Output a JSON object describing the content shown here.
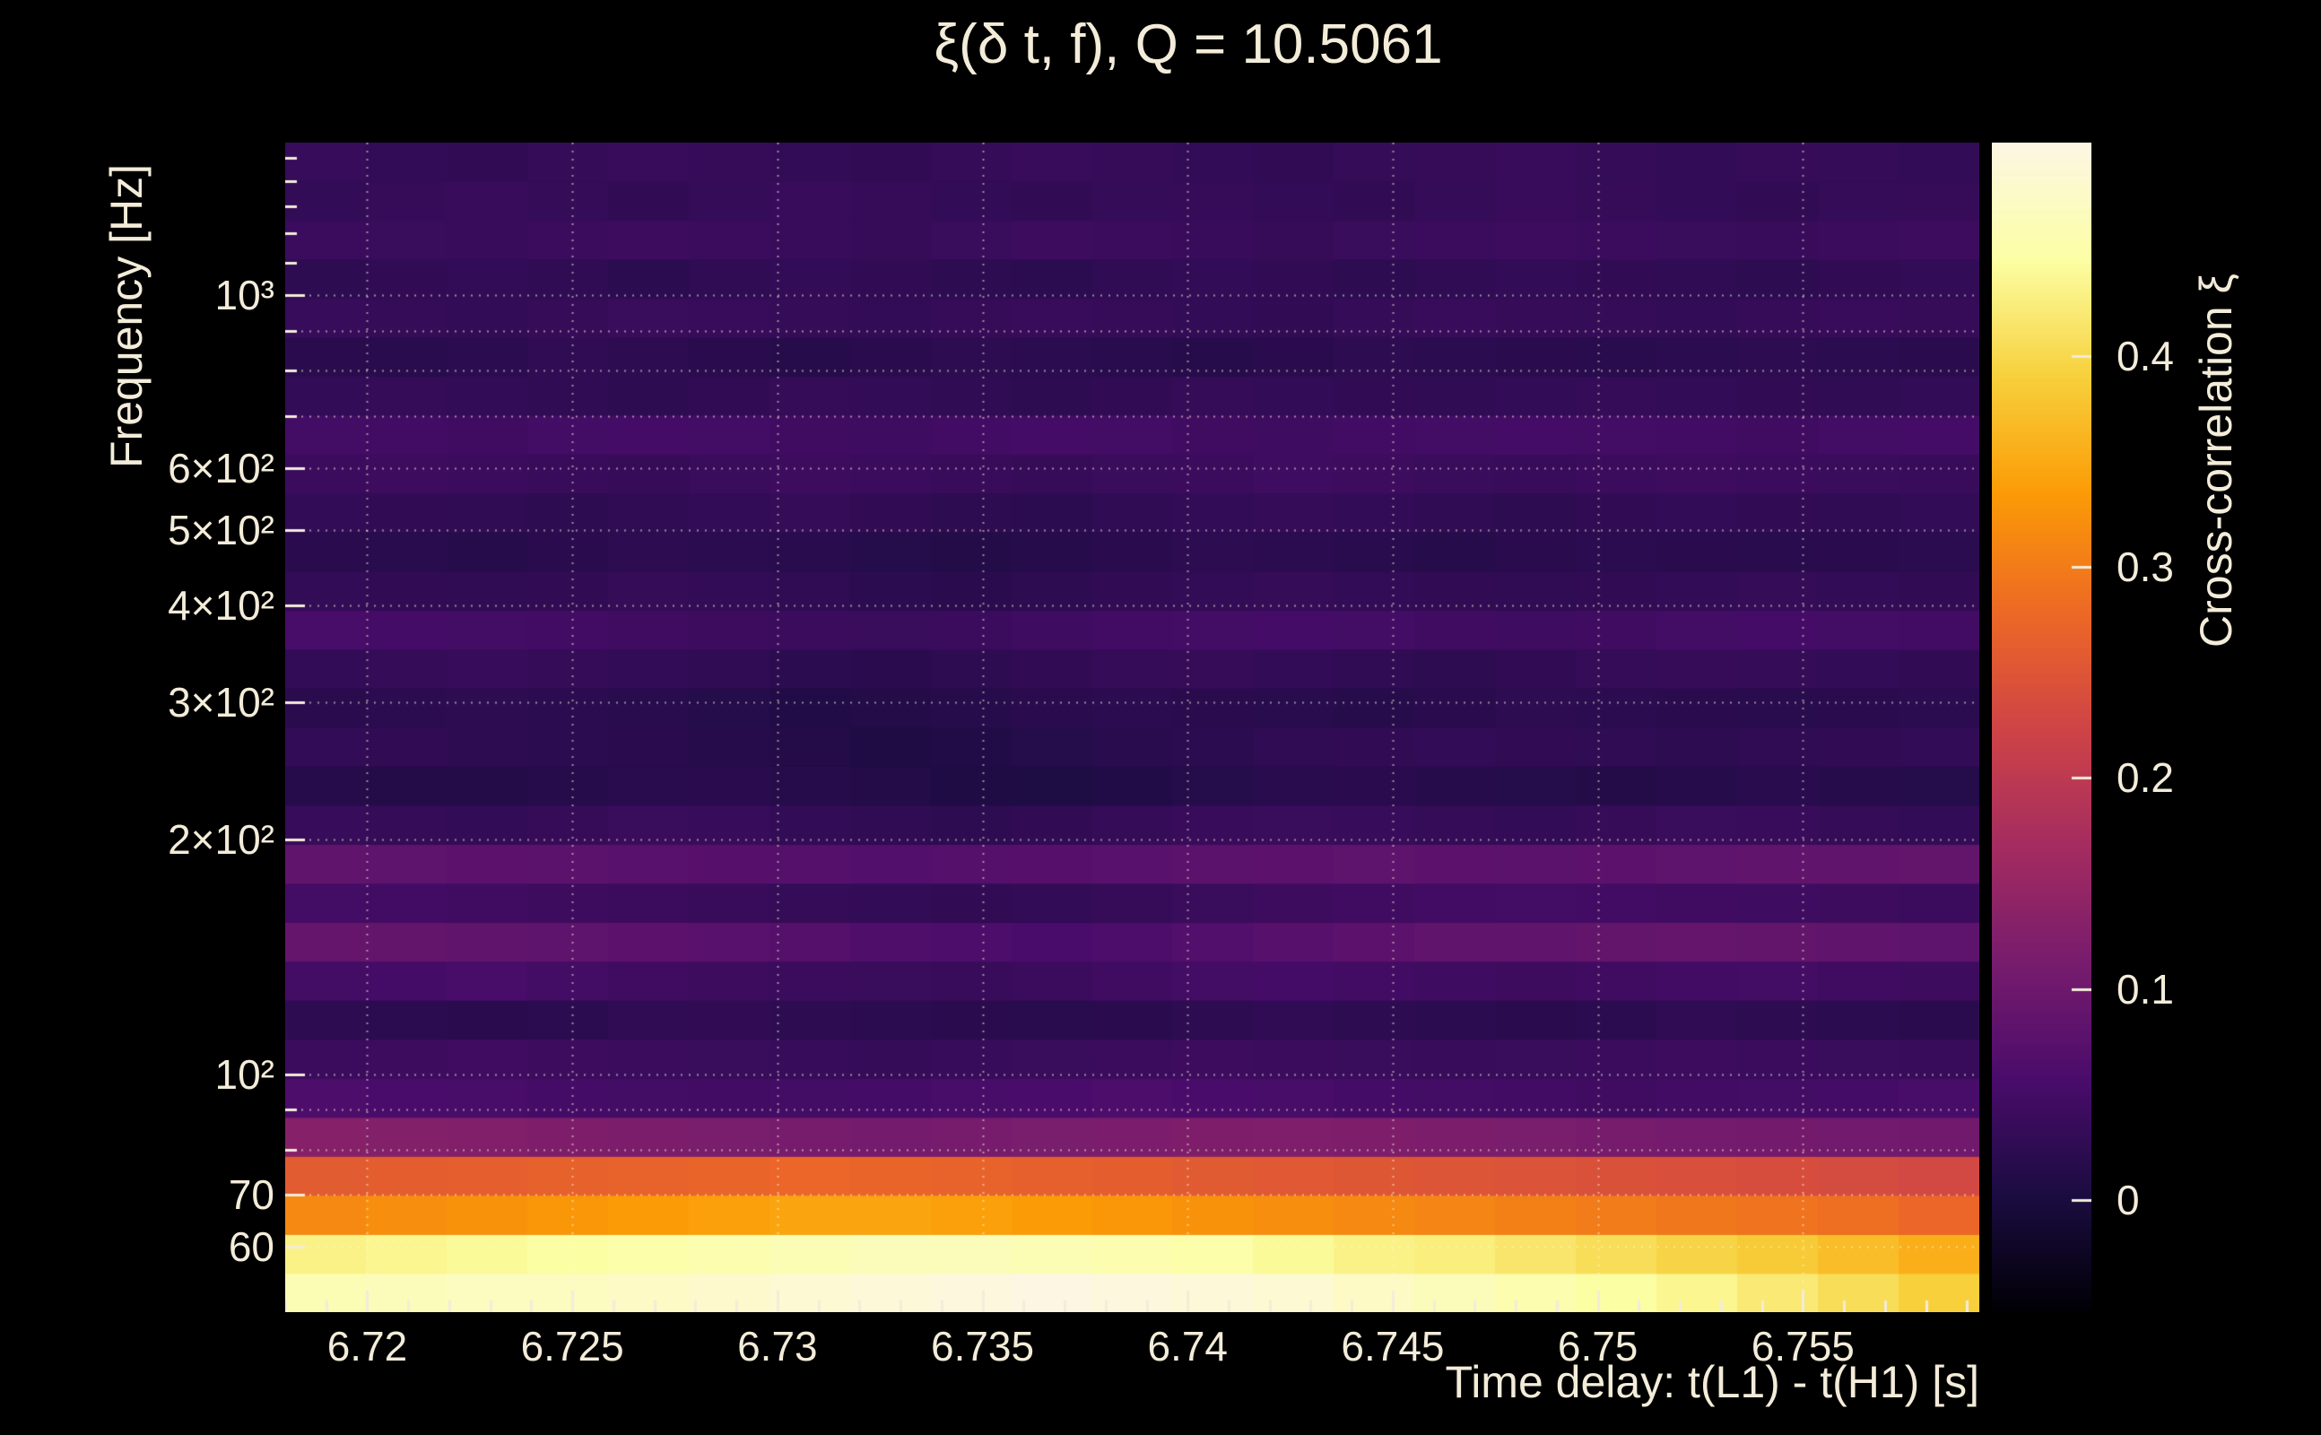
{
  "text_color": "#f3ecd9",
  "background_color": "#000000",
  "chart_data": {
    "type": "heatmap",
    "title": "ξ(δ t, f), Q = 10.5061",
    "xlabel": "Time delay: t(L1) - t(H1) [s]",
    "ylabel": "Frequency [Hz]",
    "colorbar_label": "Cross-correlation ξ",
    "x_range": [
      6.718,
      6.7593
    ],
    "y_range": [
      49.5,
      1570
    ],
    "y_scale": "log",
    "value_range": [
      -0.053,
      0.501
    ],
    "grid_on": true,
    "x_ticks": [
      {
        "v": 6.72,
        "label": "6.72"
      },
      {
        "v": 6.725,
        "label": "6.725"
      },
      {
        "v": 6.73,
        "label": "6.73"
      },
      {
        "v": 6.735,
        "label": "6.735"
      },
      {
        "v": 6.74,
        "label": "6.74"
      },
      {
        "v": 6.745,
        "label": "6.745"
      },
      {
        "v": 6.75,
        "label": "6.75"
      },
      {
        "v": 6.755,
        "label": "6.755"
      }
    ],
    "x_minor_step": 0.001,
    "y_ticks": [
      {
        "v": 1000,
        "label": "10³"
      },
      {
        "v": 600,
        "label": "6×10²"
      },
      {
        "v": 500,
        "label": "5×10²"
      },
      {
        "v": 400,
        "label": "4×10²"
      },
      {
        "v": 300,
        "label": "3×10²"
      },
      {
        "v": 200,
        "label": "2×10²"
      },
      {
        "v": 100,
        "label": "10²"
      },
      {
        "v": 70,
        "label": "70"
      },
      {
        "v": 60,
        "label": "60"
      }
    ],
    "y_minor_ticks": [
      80,
      90,
      700,
      800,
      900,
      1100,
      1200,
      1300,
      1400,
      1500
    ],
    "y_gridlines": [
      60,
      70,
      80,
      90,
      100,
      200,
      300,
      400,
      500,
      600,
      700,
      800,
      900,
      1000
    ],
    "colorbar_ticks": [
      {
        "v": 0.4,
        "label": "0.4"
      },
      {
        "v": 0.3,
        "label": "0.3"
      },
      {
        "v": 0.2,
        "label": "0.2"
      },
      {
        "v": 0.1,
        "label": "0.1"
      },
      {
        "v": 0.0,
        "label": "0"
      }
    ],
    "colormap": "inferno",
    "colormap_stops": [
      [
        0.0,
        "#000004"
      ],
      [
        0.1,
        "#1b0c41"
      ],
      [
        0.2,
        "#4a0c6b"
      ],
      [
        0.3,
        "#781c6d"
      ],
      [
        0.4,
        "#a52c60"
      ],
      [
        0.5,
        "#cf4446"
      ],
      [
        0.6,
        "#ed6925"
      ],
      [
        0.7,
        "#fb9b06"
      ],
      [
        0.8,
        "#f7d03c"
      ],
      [
        0.9,
        "#fcffa4"
      ],
      [
        1.0,
        "#fdf6e4"
      ]
    ],
    "grid": {
      "ncols": 21,
      "row_freqs": [
        52.4,
        58.8,
        66,
        74.1,
        83.1,
        93.3,
        104.7,
        117.5,
        131.8,
        148,
        166,
        186.3,
        209.1,
        234.7,
        263.3,
        295.5,
        331.6,
        372.1,
        417.6,
        468.6,
        525.9,
        590.1,
        662.2,
        743.1,
        834,
        935.9,
        1050.2,
        1178.6,
        1322.6,
        1484.2
      ],
      "values": [
        [
          0.46,
          0.465,
          0.47,
          0.47,
          0.475,
          0.48,
          0.485,
          0.49,
          0.495,
          0.5,
          0.495,
          0.49,
          0.485,
          0.475,
          0.465,
          0.455,
          0.445,
          0.435,
          0.42,
          0.405,
          0.39
        ],
        [
          0.43,
          0.435,
          0.44,
          0.445,
          0.45,
          0.455,
          0.46,
          0.465,
          0.465,
          0.46,
          0.455,
          0.45,
          0.44,
          0.43,
          0.425,
          0.415,
          0.405,
          0.395,
          0.385,
          0.37,
          0.355
        ],
        [
          0.315,
          0.32,
          0.325,
          0.33,
          0.335,
          0.34,
          0.345,
          0.345,
          0.34,
          0.335,
          0.33,
          0.325,
          0.32,
          0.315,
          0.31,
          0.305,
          0.3,
          0.295,
          0.29,
          0.285,
          0.275
        ],
        [
          0.26,
          0.262,
          0.265,
          0.268,
          0.27,
          0.272,
          0.275,
          0.272,
          0.27,
          0.266,
          0.262,
          0.258,
          0.255,
          0.252,
          0.25,
          0.247,
          0.244,
          0.24,
          0.237,
          0.234,
          0.23
        ],
        [
          0.13,
          0.127,
          0.124,
          0.12,
          0.118,
          0.115,
          0.112,
          0.11,
          0.112,
          0.115,
          0.117,
          0.12,
          0.122,
          0.12,
          0.118,
          0.115,
          0.112,
          0.11,
          0.108,
          0.106,
          0.104
        ],
        [
          0.06,
          0.058,
          0.055,
          0.052,
          0.05,
          0.048,
          0.05,
          0.052,
          0.055,
          0.058,
          0.06,
          0.058,
          0.055,
          0.052,
          0.05,
          0.048,
          0.046,
          0.048,
          0.05,
          0.052,
          0.055
        ],
        [
          0.04,
          0.042,
          0.045,
          0.042,
          0.04,
          0.038,
          0.035,
          0.033,
          0.035,
          0.038,
          0.04,
          0.042,
          0.04,
          0.038,
          0.036,
          0.038,
          0.04,
          0.042,
          0.04,
          0.038,
          0.036
        ],
        [
          0.025,
          0.022,
          0.02,
          0.023,
          0.026,
          0.028,
          0.025,
          0.022,
          0.02,
          0.018,
          0.02,
          0.024,
          0.027,
          0.025,
          0.022,
          0.02,
          0.023,
          0.026,
          0.024,
          0.022,
          0.02
        ],
        [
          0.05,
          0.052,
          0.055,
          0.05,
          0.046,
          0.042,
          0.04,
          0.038,
          0.036,
          0.04,
          0.045,
          0.05,
          0.052,
          0.048,
          0.044,
          0.042,
          0.045,
          0.048,
          0.05,
          0.046,
          0.042
        ],
        [
          0.09,
          0.088,
          0.085,
          0.082,
          0.08,
          0.075,
          0.07,
          0.065,
          0.06,
          0.058,
          0.062,
          0.068,
          0.074,
          0.08,
          0.084,
          0.086,
          0.088,
          0.09,
          0.088,
          0.085,
          0.082
        ],
        [
          0.05,
          0.048,
          0.045,
          0.042,
          0.04,
          0.036,
          0.032,
          0.03,
          0.028,
          0.03,
          0.034,
          0.038,
          0.042,
          0.046,
          0.048,
          0.05,
          0.048,
          0.046,
          0.044,
          0.042,
          0.04
        ],
        [
          0.085,
          0.082,
          0.08,
          0.078,
          0.075,
          0.072,
          0.07,
          0.068,
          0.07,
          0.072,
          0.075,
          0.078,
          0.08,
          0.082,
          0.08,
          0.078,
          0.08,
          0.082,
          0.084,
          0.086,
          0.088
        ],
        [
          0.035,
          0.032,
          0.03,
          0.034,
          0.038,
          0.035,
          0.03,
          0.026,
          0.024,
          0.028,
          0.032,
          0.036,
          0.038,
          0.035,
          0.032,
          0.03,
          0.034,
          0.038,
          0.036,
          0.033,
          0.03
        ],
        [
          0.015,
          0.013,
          0.012,
          0.015,
          0.018,
          0.02,
          0.016,
          0.012,
          0.008,
          0.006,
          0.01,
          0.014,
          0.018,
          0.02,
          0.017,
          0.014,
          0.012,
          0.015,
          0.018,
          0.016,
          0.014
        ],
        [
          0.03,
          0.028,
          0.025,
          0.022,
          0.02,
          0.016,
          0.012,
          0.008,
          0.01,
          0.014,
          0.018,
          0.022,
          0.026,
          0.028,
          0.03,
          0.028,
          0.026,
          0.024,
          0.026,
          0.028,
          0.03
        ],
        [
          0.02,
          0.022,
          0.025,
          0.022,
          0.018,
          0.014,
          0.01,
          0.012,
          0.016,
          0.02,
          0.022,
          0.02,
          0.018,
          0.016,
          0.02,
          0.024,
          0.022,
          0.02,
          0.018,
          0.02,
          0.022
        ],
        [
          0.03,
          0.032,
          0.035,
          0.032,
          0.03,
          0.026,
          0.022,
          0.02,
          0.024,
          0.028,
          0.032,
          0.034,
          0.03,
          0.026,
          0.024,
          0.028,
          0.032,
          0.034,
          0.032,
          0.03,
          0.028
        ],
        [
          0.055,
          0.052,
          0.05,
          0.048,
          0.045,
          0.042,
          0.04,
          0.038,
          0.04,
          0.044,
          0.048,
          0.05,
          0.052,
          0.05,
          0.046,
          0.044,
          0.046,
          0.05,
          0.052,
          0.05,
          0.048
        ],
        [
          0.03,
          0.028,
          0.026,
          0.028,
          0.032,
          0.03,
          0.026,
          0.022,
          0.02,
          0.024,
          0.028,
          0.03,
          0.032,
          0.03,
          0.028,
          0.026,
          0.028,
          0.03,
          0.032,
          0.03,
          0.028
        ],
        [
          0.02,
          0.018,
          0.016,
          0.02,
          0.024,
          0.022,
          0.018,
          0.014,
          0.012,
          0.016,
          0.02,
          0.024,
          0.022,
          0.018,
          0.016,
          0.02,
          0.022,
          0.02,
          0.018,
          0.02,
          0.022
        ],
        [
          0.03,
          0.028,
          0.026,
          0.024,
          0.026,
          0.03,
          0.032,
          0.028,
          0.024,
          0.022,
          0.026,
          0.03,
          0.032,
          0.03,
          0.026,
          0.024,
          0.028,
          0.03,
          0.028,
          0.026,
          0.03
        ],
        [
          0.04,
          0.042,
          0.04,
          0.036,
          0.034,
          0.038,
          0.042,
          0.04,
          0.036,
          0.034,
          0.038,
          0.04,
          0.044,
          0.042,
          0.038,
          0.036,
          0.04,
          0.042,
          0.04,
          0.038,
          0.036
        ],
        [
          0.05,
          0.048,
          0.046,
          0.05,
          0.052,
          0.05,
          0.046,
          0.044,
          0.048,
          0.052,
          0.05,
          0.046,
          0.044,
          0.048,
          0.05,
          0.052,
          0.05,
          0.048,
          0.046,
          0.05,
          0.052
        ],
        [
          0.03,
          0.032,
          0.03,
          0.026,
          0.024,
          0.028,
          0.032,
          0.03,
          0.026,
          0.024,
          0.028,
          0.032,
          0.03,
          0.028,
          0.026,
          0.03,
          0.032,
          0.03,
          0.028,
          0.026,
          0.03
        ],
        [
          0.02,
          0.018,
          0.022,
          0.026,
          0.024,
          0.02,
          0.016,
          0.02,
          0.024,
          0.022,
          0.018,
          0.016,
          0.02,
          0.024,
          0.022,
          0.02,
          0.018,
          0.022,
          0.024,
          0.022,
          0.02
        ],
        [
          0.035,
          0.032,
          0.03,
          0.034,
          0.038,
          0.036,
          0.032,
          0.03,
          0.034,
          0.036,
          0.034,
          0.03,
          0.028,
          0.032,
          0.036,
          0.034,
          0.032,
          0.03,
          0.034,
          0.036,
          0.034
        ],
        [
          0.025,
          0.028,
          0.03,
          0.026,
          0.022,
          0.026,
          0.03,
          0.028,
          0.024,
          0.022,
          0.026,
          0.03,
          0.028,
          0.024,
          0.026,
          0.03,
          0.028,
          0.026,
          0.024,
          0.028,
          0.03
        ],
        [
          0.04,
          0.038,
          0.036,
          0.04,
          0.042,
          0.04,
          0.036,
          0.034,
          0.038,
          0.042,
          0.04,
          0.036,
          0.034,
          0.038,
          0.04,
          0.042,
          0.04,
          0.038,
          0.036,
          0.04,
          0.042
        ],
        [
          0.03,
          0.034,
          0.036,
          0.032,
          0.028,
          0.032,
          0.036,
          0.034,
          0.03,
          0.028,
          0.032,
          0.034,
          0.03,
          0.028,
          0.032,
          0.036,
          0.034,
          0.03,
          0.028,
          0.032,
          0.034
        ],
        [
          0.035,
          0.03,
          0.028,
          0.032,
          0.036,
          0.034,
          0.03,
          0.028,
          0.032,
          0.036,
          0.034,
          0.03,
          0.028,
          0.032,
          0.034,
          0.036,
          0.032,
          0.03,
          0.034,
          0.032,
          0.03
        ]
      ]
    }
  }
}
